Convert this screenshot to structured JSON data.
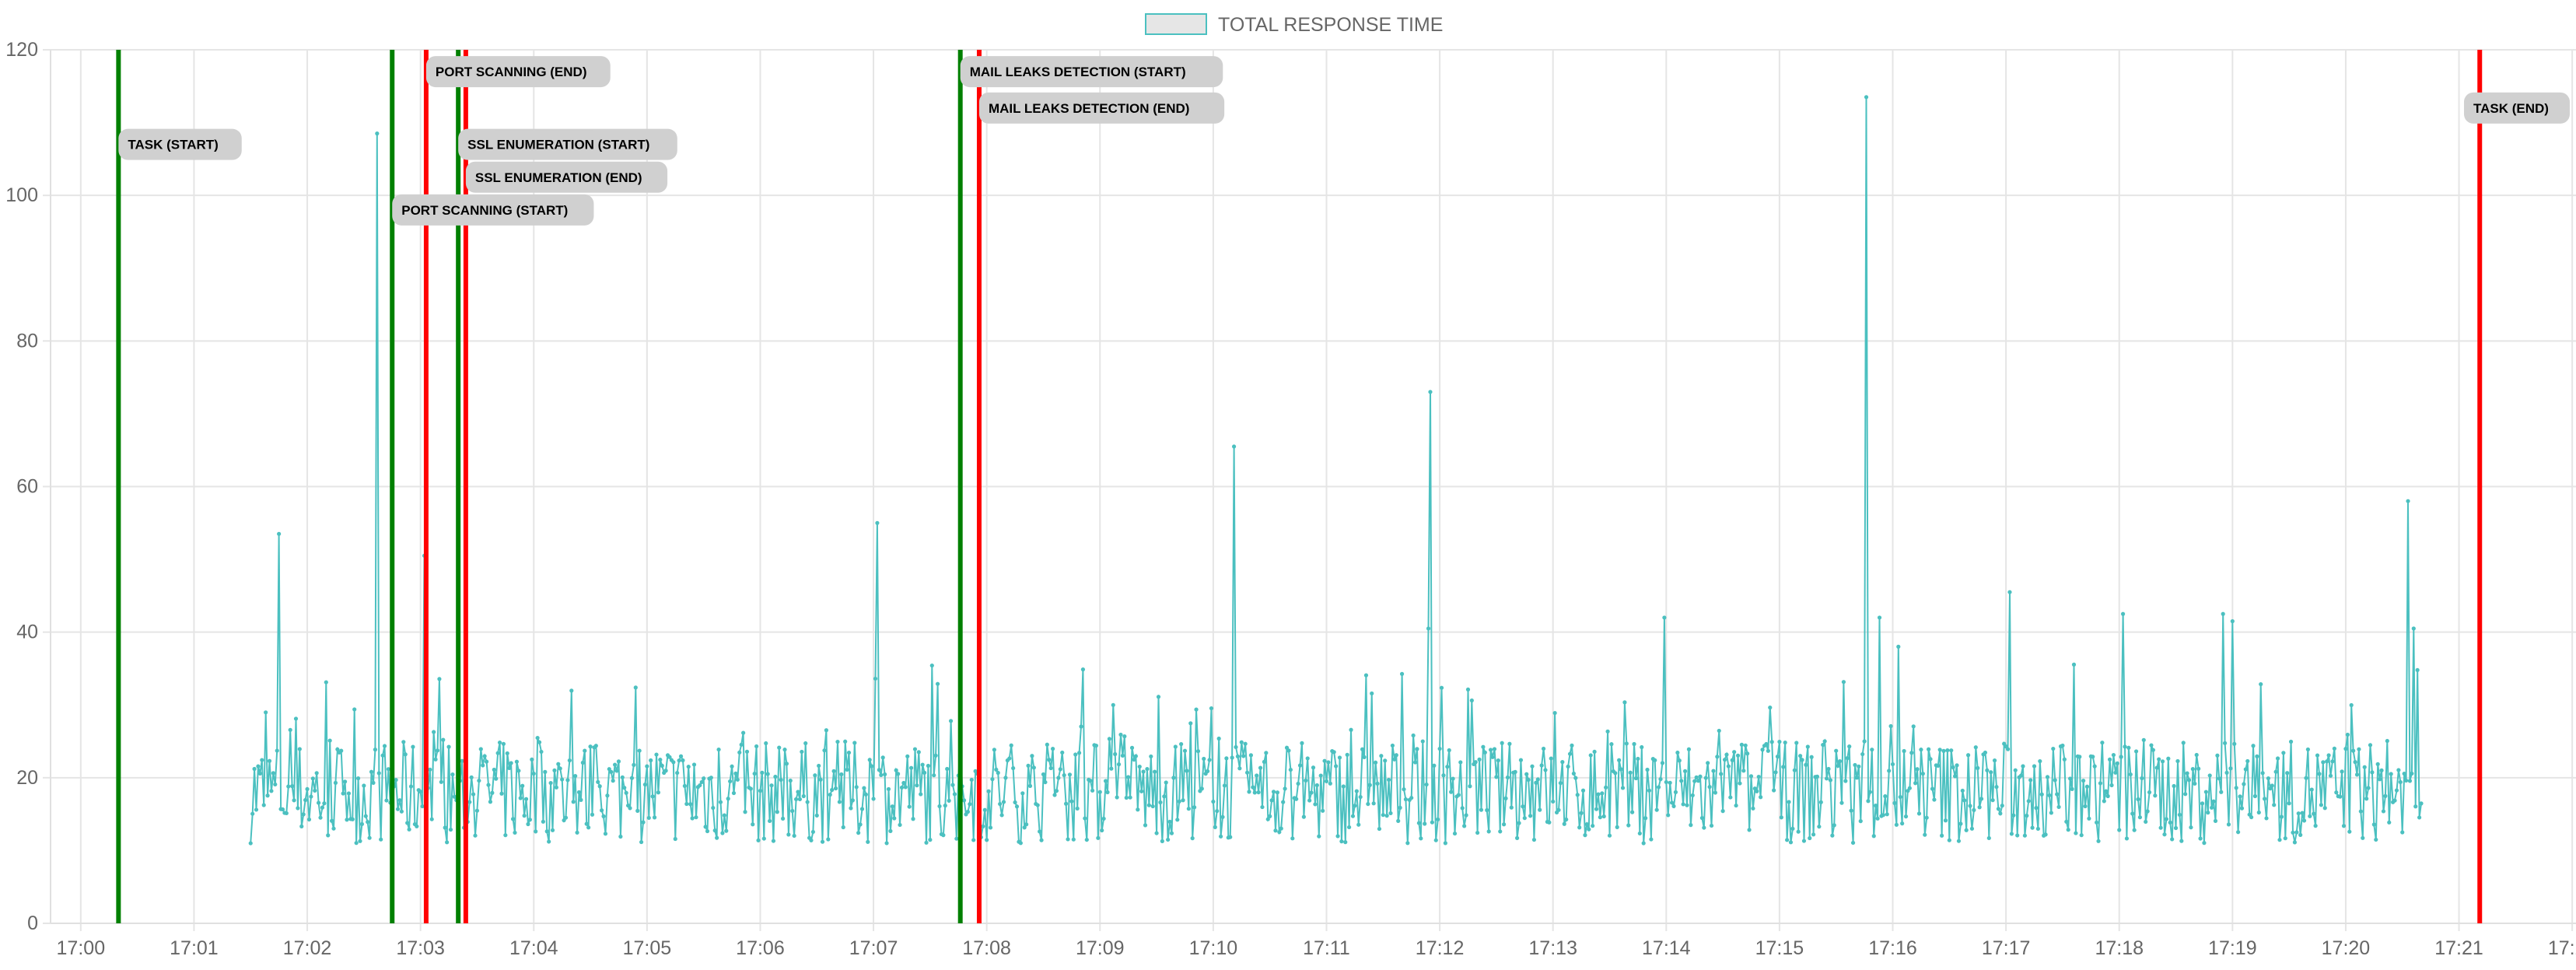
{
  "chart_data": {
    "type": "line",
    "title": "",
    "xlabel": "",
    "ylabel": "",
    "ylim": [
      0,
      120
    ],
    "y_ticks": [
      0,
      20,
      40,
      60,
      80,
      100,
      120
    ],
    "x_ticks": [
      "17:00",
      "17:01",
      "17:02",
      "17:03",
      "17:04",
      "17:05",
      "17:06",
      "17:07",
      "17:08",
      "17:09",
      "17:10",
      "17:11",
      "17:12",
      "17:13",
      "17:14",
      "17:15",
      "17:16",
      "17:17",
      "17:18",
      "17:19",
      "17:20",
      "17:21",
      "17:22"
    ],
    "x_range": [
      "16:59:44",
      "17:22:02"
    ],
    "grid": true,
    "legend": {
      "placement": "top-center",
      "label": "TOTAL RESPONSE TIME",
      "fill_color": "#e6e6e6",
      "border_color": "#4bc0c0"
    },
    "series": [
      {
        "name": "TOTAL RESPONSE TIME",
        "color": "#4bc0c0",
        "sampling_interval_s": 1,
        "x": [
          "17:01:30",
          "17:20:40"
        ],
        "peaks": [
          {
            "t": "17:01:45",
            "y": 53.5
          },
          {
            "t": "17:02:37",
            "y": 108.5
          },
          {
            "t": "17:03:02",
            "y": 50.5
          },
          {
            "t": "17:07:02",
            "y": 55
          },
          {
            "t": "17:10:11",
            "y": 65.5
          },
          {
            "t": "17:11:55",
            "y": 73
          },
          {
            "t": "17:11:54",
            "y": 40.5
          },
          {
            "t": "17:13:59",
            "y": 42
          },
          {
            "t": "17:15:46",
            "y": 113.5
          },
          {
            "t": "17:15:53",
            "y": 42
          },
          {
            "t": "17:16:03",
            "y": 38
          },
          {
            "t": "17:17:02",
            "y": 45.5
          },
          {
            "t": "17:18:02",
            "y": 42.5
          },
          {
            "t": "17:18:55",
            "y": 42.5
          },
          {
            "t": "17:19:00",
            "y": 41.5
          },
          {
            "t": "17:20:33",
            "y": 58
          },
          {
            "t": "17:20:36",
            "y": 40.5
          }
        ]
      }
    ],
    "annotations": [
      {
        "label": "TASK (START)",
        "time": "17:00:20",
        "color": "#008000",
        "label_y": 107
      },
      {
        "label": "PORT SCANNING (START)",
        "time": "17:02:45",
        "color": "#008000",
        "label_y": 98
      },
      {
        "label": "PORT SCANNING (END)",
        "time": "17:03:03",
        "color": "#ff0000",
        "label_y": 117
      },
      {
        "label": "SSL ENUMERATION (START)",
        "time": "17:03:20",
        "color": "#008000",
        "label_y": 107
      },
      {
        "label": "SSL ENUMERATION (END)",
        "time": "17:03:24",
        "color": "#ff0000",
        "label_y": 102.5
      },
      {
        "label": "MAIL LEAKS DETECTION (START)",
        "time": "17:07:46",
        "color": "#008000",
        "label_y": 117
      },
      {
        "label": "MAIL LEAKS DETECTION (END)",
        "time": "17:07:56",
        "color": "#ff0000",
        "label_y": 112
      },
      {
        "label": "TASK (END)",
        "time": "17:21:11",
        "color": "#ff0000",
        "label_y": 112
      }
    ]
  }
}
